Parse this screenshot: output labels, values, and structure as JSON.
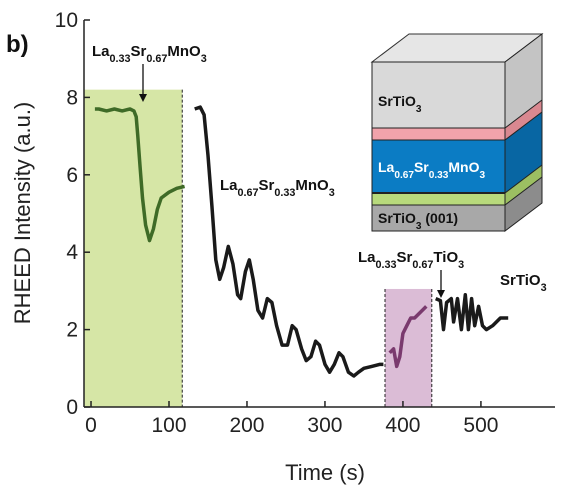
{
  "chart_data": {
    "type": "line",
    "panel_label": "b)",
    "xlabel": "Time (s)",
    "ylabel": "RHEED Intensity (a.u.)",
    "xlim": [
      -9,
      595
    ],
    "ylim": [
      0,
      10
    ],
    "xticks": [
      0,
      100,
      200,
      300,
      400,
      500
    ],
    "yticks": [
      0,
      2,
      4,
      6,
      8,
      10
    ],
    "highlights": [
      {
        "xlim": [
          -9,
          117
        ],
        "ylim": [
          0,
          8.2
        ],
        "color": "#d6e6a6"
      },
      {
        "xlim": [
          377,
          437
        ],
        "ylim": [
          0,
          3.05
        ],
        "color": "#dbbcd6"
      }
    ],
    "series": [
      {
        "color": "#3f6b27",
        "x": [
          5,
          10,
          20,
          30,
          40,
          50,
          55,
          58,
          60,
          63,
          66,
          70,
          75,
          80,
          85,
          90,
          100,
          110,
          120
        ],
        "values": [
          7.7,
          7.7,
          7.65,
          7.7,
          7.65,
          7.7,
          7.65,
          7.5,
          7.0,
          6.2,
          5.4,
          4.7,
          4.3,
          4.6,
          5.1,
          5.4,
          5.55,
          5.65,
          5.7
        ]
      },
      {
        "color": "#1a1a1a",
        "x": [
          133,
          140,
          145,
          150,
          155,
          160,
          165,
          170,
          176,
          182,
          188,
          192,
          198,
          203,
          208,
          214,
          220,
          226,
          232,
          238,
          245,
          252,
          258,
          263,
          270,
          276,
          282,
          288,
          293,
          300,
          306,
          312,
          318,
          323,
          330,
          337,
          343,
          350,
          360,
          370,
          375
        ],
        "values": [
          7.7,
          7.75,
          7.55,
          6.5,
          5.2,
          3.8,
          3.3,
          3.6,
          4.15,
          3.7,
          2.9,
          2.8,
          3.5,
          3.8,
          3.3,
          2.5,
          2.3,
          2.8,
          2.7,
          2.1,
          1.6,
          1.6,
          2.1,
          2.0,
          1.5,
          1.2,
          1.3,
          1.7,
          1.6,
          1.1,
          0.9,
          1.1,
          1.4,
          1.3,
          0.9,
          0.8,
          0.9,
          1.0,
          1.05,
          1.1,
          1.1
        ]
      },
      {
        "color": "#7a3a6e",
        "x": [
          383,
          388,
          392,
          396,
          400,
          405,
          410,
          415,
          420,
          425,
          430
        ],
        "values": [
          1.4,
          1.5,
          1.05,
          1.3,
          1.9,
          2.1,
          2.3,
          2.3,
          2.4,
          2.5,
          2.6
        ]
      },
      {
        "color": "#1a1a1a",
        "x": [
          442,
          448,
          452,
          456,
          462,
          465,
          470,
          475,
          480,
          484,
          488,
          492,
          497,
          502,
          507,
          515,
          525,
          535
        ],
        "values": [
          2.8,
          2.75,
          2.0,
          2.7,
          2.8,
          2.2,
          2.8,
          2.0,
          2.9,
          2.0,
          2.8,
          2.1,
          2.6,
          2.1,
          2.0,
          2.1,
          2.3,
          2.3
        ]
      }
    ],
    "annotations": [
      {
        "text": "La0.33Sr0.67MnO3"
      },
      {
        "text": "La0.67Sr0.33MnO3"
      },
      {
        "text": "La0.33Sr0.67TiO3"
      },
      {
        "text": "SrTiO3"
      }
    ],
    "inset_layers": [
      {
        "text": "SrTiO3"
      },
      {
        "text": "La0.67Sr0.33MnO3"
      },
      {
        "text": "SrTiO3 (001)"
      }
    ]
  }
}
